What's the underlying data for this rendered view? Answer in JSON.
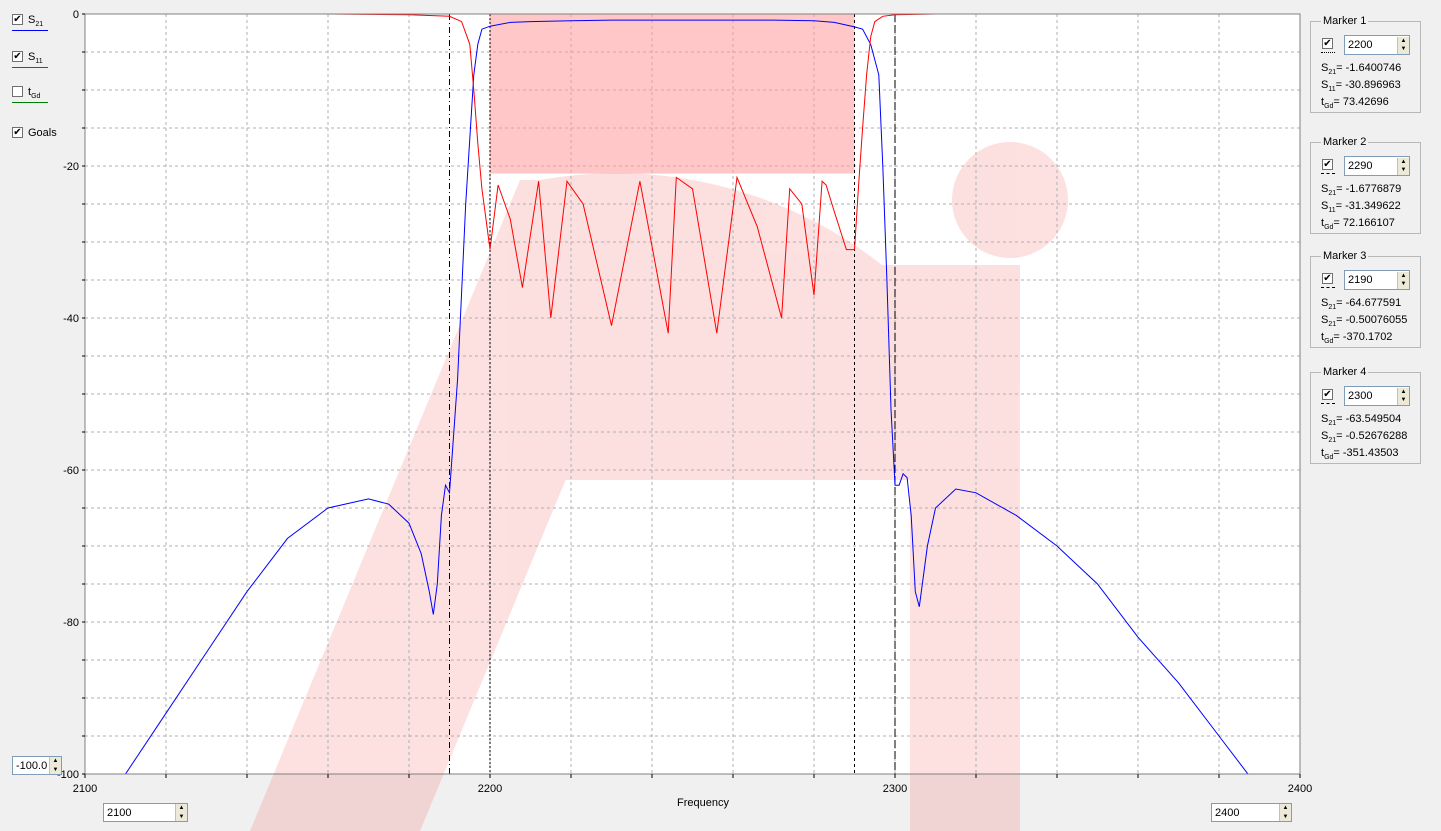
{
  "toggles": [
    {
      "base": "S",
      "sub": "21",
      "checked": true,
      "color": "#0000ff"
    },
    {
      "base": "S",
      "sub": "11",
      "checked": true,
      "color": "#ff0000"
    },
    {
      "base": "t",
      "sub": "Gd",
      "checked": false,
      "color": "#008000"
    },
    {
      "base": "Goals",
      "sub": "",
      "checked": true,
      "color": ""
    }
  ],
  "y_min_value": "-100.0",
  "x_min_value": "2100",
  "x_max_value": "2400",
  "x_axis_label": "Frequency",
  "markers": [
    {
      "title": "Marker 1",
      "checked": true,
      "value": "2200",
      "lines": [
        {
          "b": "S",
          "s": "21",
          "v": "= -1.6400746"
        },
        {
          "b": "S",
          "s": "11",
          "v": "= -30.896963"
        },
        {
          "b": "t",
          "s": "Gd",
          "v": "= 73.42696"
        }
      ]
    },
    {
      "title": "Marker 2",
      "checked": true,
      "value": "2290",
      "lines": [
        {
          "b": "S",
          "s": "21",
          "v": "= -1.6776879"
        },
        {
          "b": "S",
          "s": "11",
          "v": "= -31.349622"
        },
        {
          "b": "t",
          "s": "Gd",
          "v": "= 72.166107"
        }
      ]
    },
    {
      "title": "Marker 3",
      "checked": true,
      "value": "2190",
      "lines": [
        {
          "b": "S",
          "s": "21",
          "v": "= -64.677591"
        },
        {
          "b": "S",
          "s": "21",
          "v": "= -0.50076055"
        },
        {
          "b": "t",
          "s": "Gd",
          "v": "= -370.1702"
        }
      ]
    },
    {
      "title": "Marker 4",
      "checked": true,
      "value": "2300",
      "lines": [
        {
          "b": "S",
          "s": "21",
          "v": "= -63.549504"
        },
        {
          "b": "S",
          "s": "21",
          "v": "= -0.52676288"
        },
        {
          "b": "t",
          "s": "Gd",
          "v": "= -351.43503"
        }
      ]
    }
  ],
  "chart_data": {
    "type": "line",
    "xlabel": "Frequency",
    "ylabel": "",
    "xlim": [
      2100,
      2400
    ],
    "ylim": [
      -100,
      0
    ],
    "x_ticks": [
      2100,
      2200,
      2300,
      2400
    ],
    "y_ticks": [
      0,
      -20,
      -40,
      -60,
      -80,
      -100
    ],
    "grid": true,
    "series": [
      {
        "name": "S21",
        "color": "#0000ff",
        "x": [
          2100,
          2110,
          2120,
          2130,
          2140,
          2150,
          2160,
          2170,
          2175,
          2180,
          2183,
          2185,
          2186,
          2187,
          2188,
          2189,
          2190,
          2192,
          2194,
          2196,
          2197,
          2198,
          2200,
          2205,
          2210,
          2220,
          2230,
          2240,
          2250,
          2260,
          2270,
          2280,
          2285,
          2290,
          2292,
          2294,
          2296,
          2297,
          2298,
          2299,
          2300,
          2301,
          2302,
          2303,
          2304,
          2305,
          2306,
          2308,
          2310,
          2315,
          2320,
          2330,
          2340,
          2350,
          2360,
          2370,
          2380,
          2390,
          2400
        ],
        "y": [
          -110,
          -100,
          -92,
          -84,
          -76,
          -69,
          -65,
          -63.8,
          -64.5,
          -67,
          -71,
          -76,
          -79,
          -75,
          -66,
          -62,
          -63,
          -48,
          -25,
          -8,
          -4,
          -2,
          -1.6,
          -1.1,
          -1,
          -0.9,
          -0.8,
          -0.8,
          -0.8,
          -0.8,
          -0.8,
          -0.9,
          -1.1,
          -1.7,
          -2,
          -4,
          -8,
          -20,
          -35,
          -52,
          -62,
          -62,
          -60.5,
          -61,
          -66,
          -76,
          -78,
          -70,
          -65,
          -62.5,
          -63,
          -66,
          -70,
          -75,
          -82,
          -88,
          -95,
          -102,
          -110
        ]
      },
      {
        "name": "S11",
        "color": "#ff0000",
        "x": [
          2160,
          2180,
          2190,
          2193,
          2195,
          2196,
          2197,
          2198,
          2199,
          2200,
          2202,
          2205,
          2208,
          2212,
          2215,
          2219,
          2223,
          2230,
          2237,
          2244,
          2246,
          2250,
          2256,
          2261,
          2266,
          2272,
          2274,
          2277,
          2280,
          2282,
          2283,
          2285,
          2288,
          2290,
          2291,
          2292,
          2293,
          2294,
          2295,
          2297,
          2300,
          2310,
          2320,
          2330,
          2335
        ],
        "y": [
          0,
          -0.1,
          -0.3,
          -1,
          -4,
          -10,
          -17,
          -23,
          -27,
          -31,
          -22.5,
          -27,
          -36,
          -22,
          -40,
          -22,
          -25,
          -41,
          -22,
          -42,
          -21.5,
          -23,
          -42,
          -21.5,
          -28,
          -40,
          -23,
          -25,
          -37,
          -22,
          -22.5,
          -26,
          -31,
          -31,
          -22.5,
          -15,
          -8,
          -3,
          -1,
          -0.3,
          -0.1,
          0,
          0,
          0,
          0
        ]
      }
    ],
    "goal_region": {
      "x": [
        2200,
        2290
      ],
      "y": [
        0,
        -21
      ]
    },
    "vertical_markers": [
      2190,
      2200,
      2290,
      2300
    ]
  }
}
